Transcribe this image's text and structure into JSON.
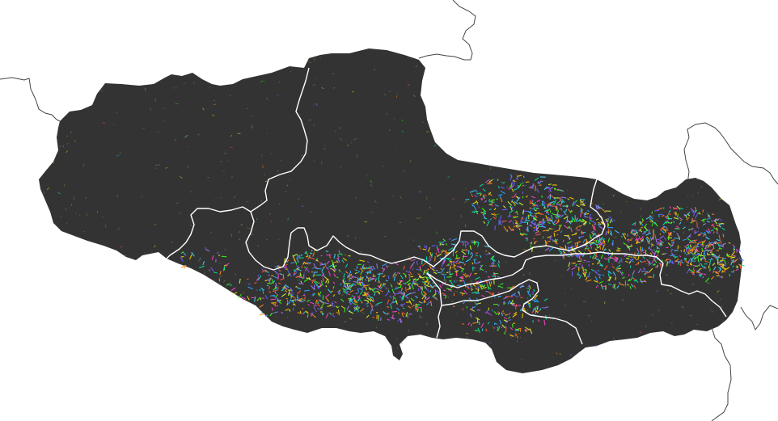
{
  "map": {
    "region_fill": "#333333",
    "internal_boundary_color": "#ffffff",
    "external_boundary_color": "#444444",
    "background": "#ffffff",
    "segment_palette": [
      "#39ff14",
      "#ff5a36",
      "#3dd6ff",
      "#6a5cff",
      "#ff44cc",
      "#ffd400",
      "#00e5a8",
      "#ff8c1a",
      "#9b7bff",
      "#d1ff3a",
      "#2ea8ff"
    ]
  }
}
